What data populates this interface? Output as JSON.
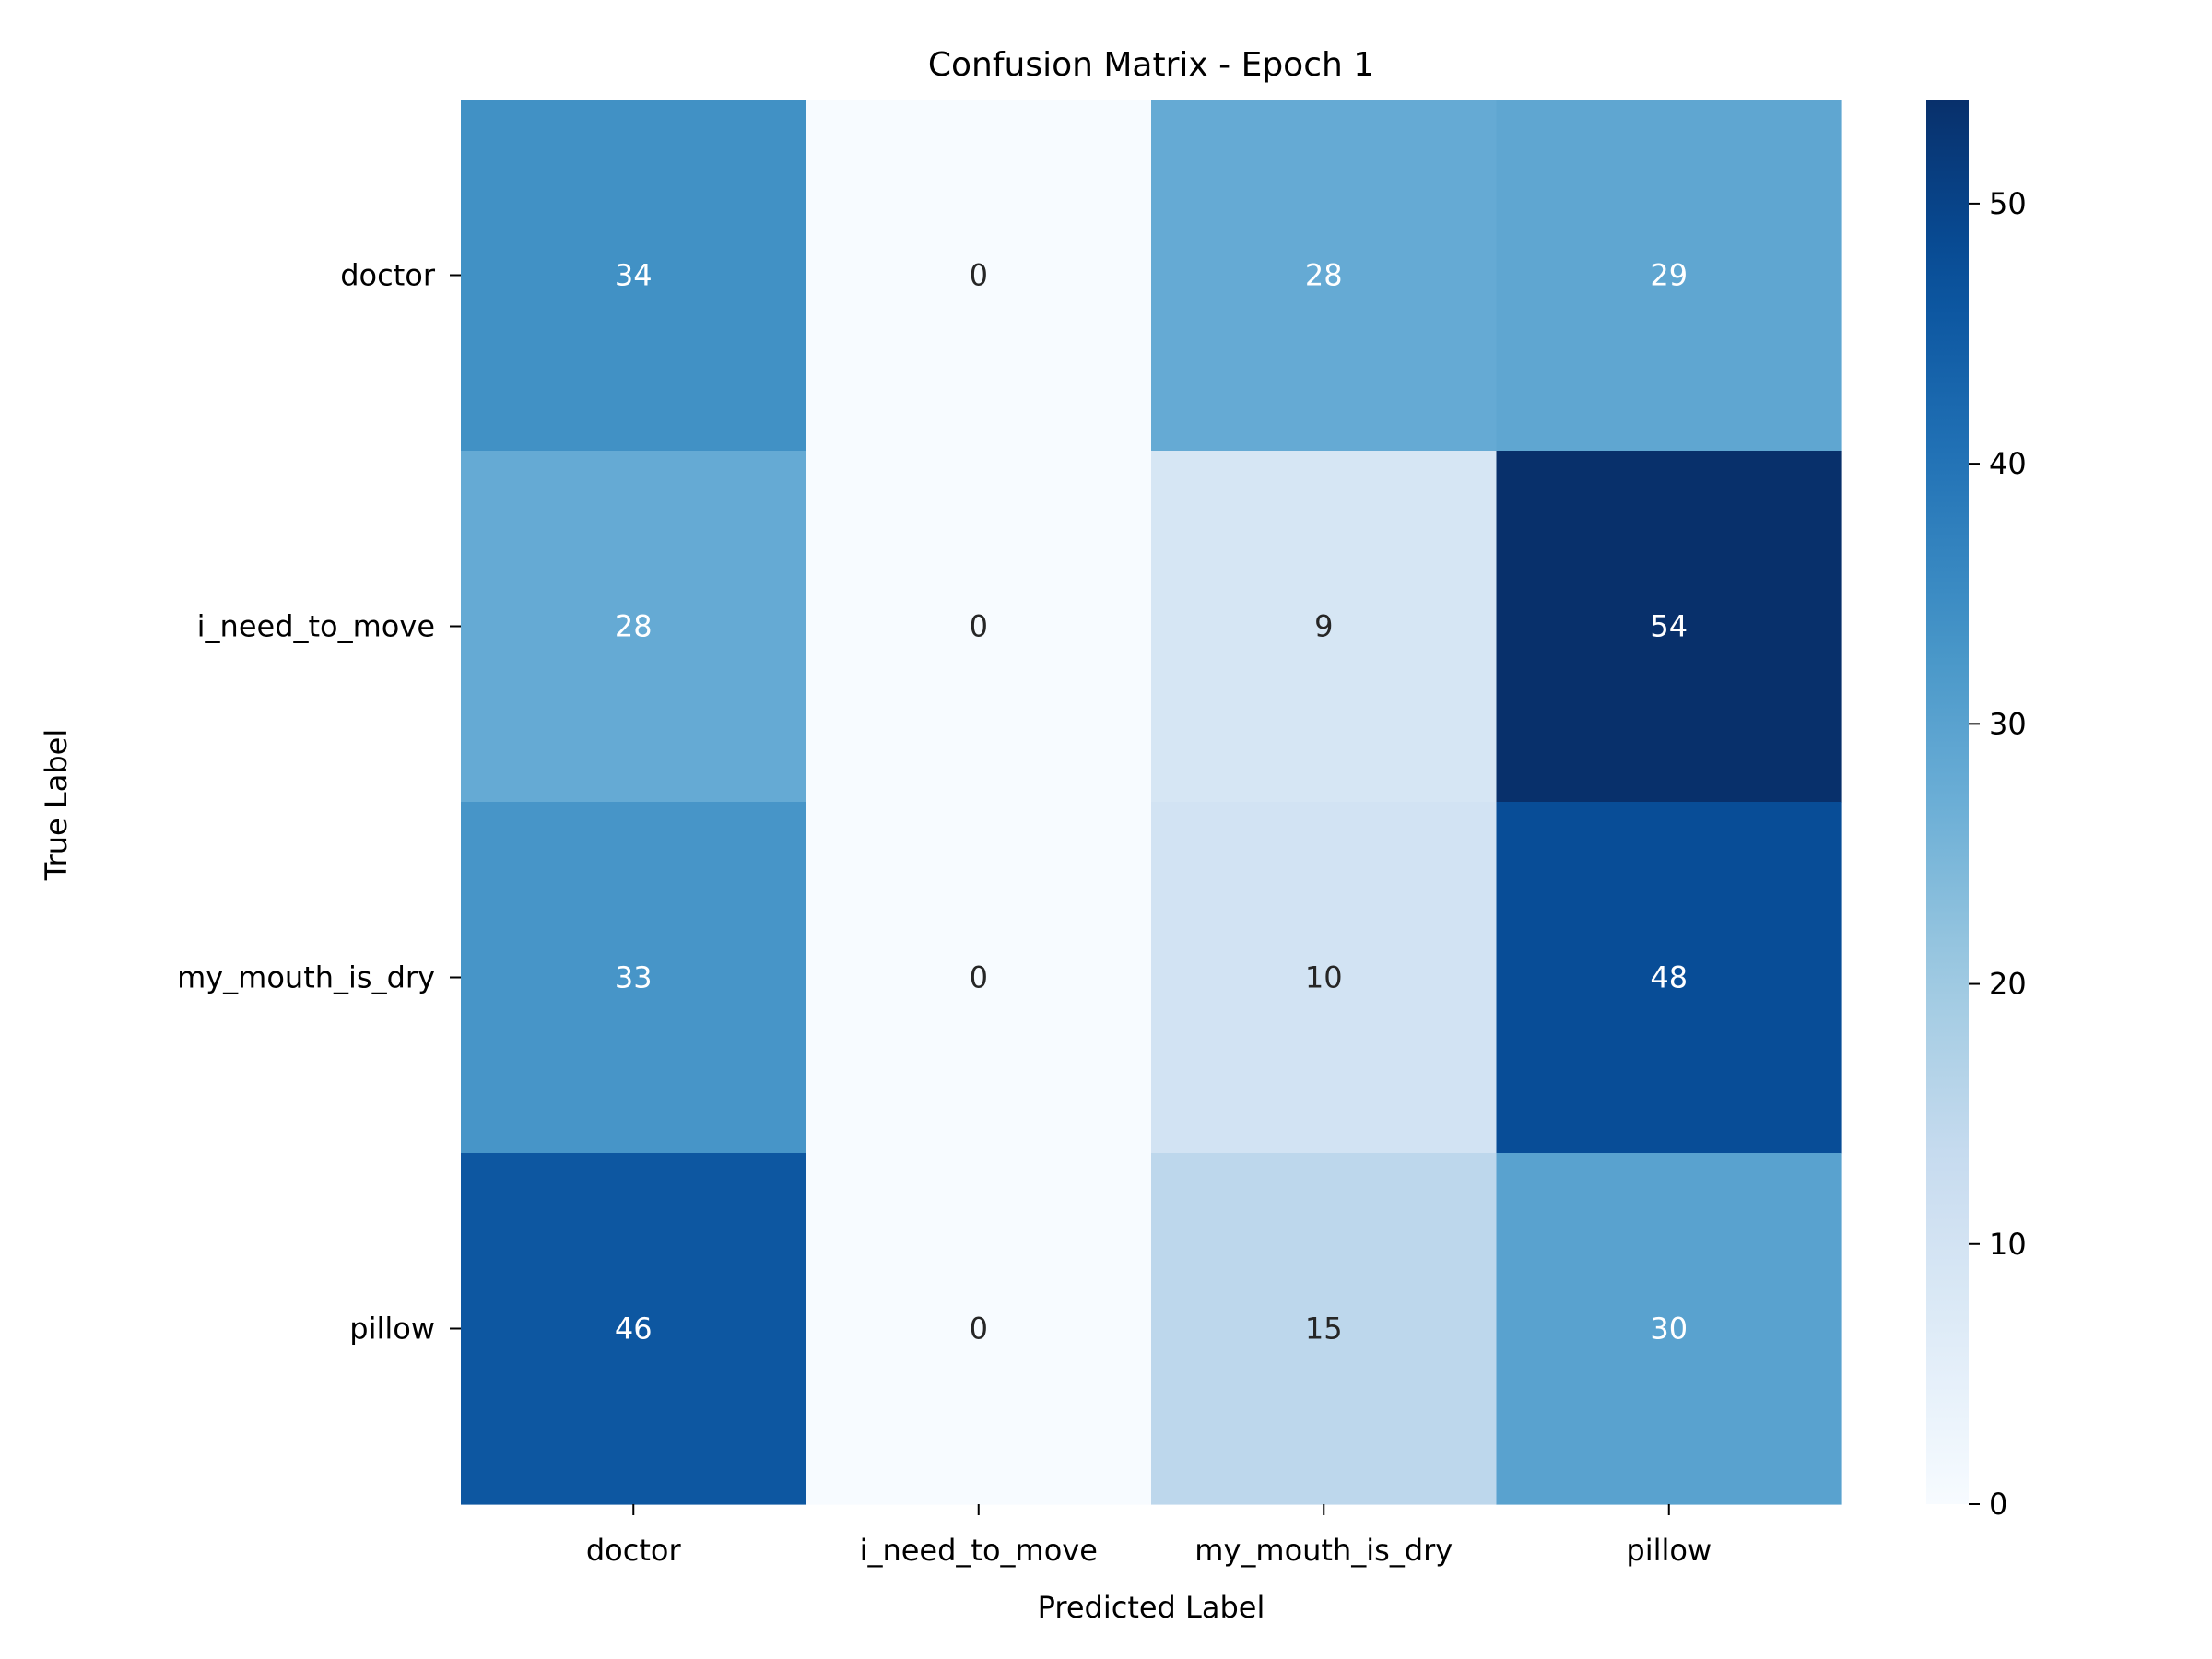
{
  "chart_data": {
    "type": "heatmap",
    "title": "Confusion Matrix - Epoch 1",
    "xlabel": "Predicted Label",
    "ylabel": "True Label",
    "x_categories": [
      "doctor",
      "i_need_to_move",
      "my_mouth_is_dry",
      "pillow"
    ],
    "y_categories": [
      "doctor",
      "i_need_to_move",
      "my_mouth_is_dry",
      "pillow"
    ],
    "values": [
      [
        34,
        0,
        28,
        29
      ],
      [
        28,
        0,
        9,
        54
      ],
      [
        33,
        0,
        10,
        48
      ],
      [
        46,
        0,
        15,
        30
      ]
    ],
    "colormap": "Blues",
    "vmin": 0,
    "vmax": 54,
    "colorbar_ticks": [
      0,
      10,
      20,
      30,
      40,
      50
    ],
    "colors": {
      "text_dark": "#262626",
      "text_light": "#ffffff",
      "axis": "#000000"
    }
  }
}
